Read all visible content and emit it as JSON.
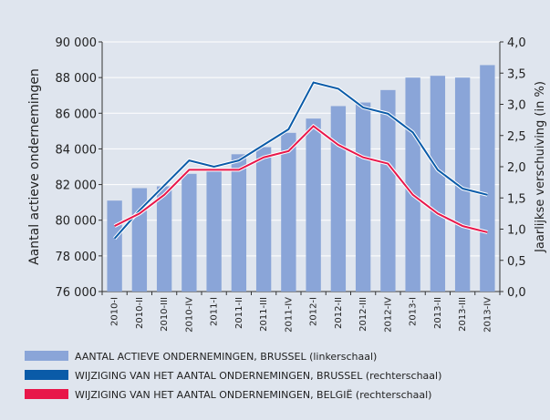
{
  "chart_data": {
    "type": "bar-line",
    "y_label": "Aantal actieve ondernemingen",
    "y2_label": "Jaarlijkse verschuiving (in %)",
    "categories": [
      "2010-I",
      "2010-II",
      "2010-III",
      "2010-IV",
      "2011-I",
      "2011-II",
      "2011-III",
      "2011-IV",
      "2012-I",
      "2012-II",
      "2012-III",
      "2012-IV",
      "2013-I",
      "2013-II",
      "2013-III",
      "2013-IV"
    ],
    "series": [
      {
        "name": "AANTAL ACTIEVE ONDERNEMINGEN, BRUSSEL (linkerschaal)",
        "color": "#8aa5d8",
        "kind": "bar",
        "values": [
          81100,
          81800,
          81900,
          82600,
          82900,
          83700,
          84100,
          84900,
          85700,
          86400,
          86600,
          87300,
          88000,
          88100,
          88000,
          88700
        ]
      },
      {
        "name": "WIJZIGING VAN HET AANTAL ONDERNEMINGEN, BRUSSEL (rechterschaal)",
        "color": "#0a5ba8",
        "kind": "line",
        "axis": "y2",
        "values": [
          0.85,
          1.3,
          1.7,
          2.1,
          2.0,
          2.1,
          2.35,
          2.6,
          3.35,
          3.25,
          2.95,
          2.85,
          2.55,
          1.95,
          1.65,
          1.55
        ]
      },
      {
        "name": "WIJZIGING VAN HET AANTAL ONDERNEMINGEN, BELGIË (rechterschaal)",
        "color": "#e8174a",
        "kind": "line",
        "axis": "y2",
        "values": [
          1.05,
          1.25,
          1.55,
          1.95,
          1.95,
          1.95,
          2.15,
          2.25,
          2.65,
          2.35,
          2.15,
          2.05,
          1.55,
          1.25,
          1.05,
          0.95
        ]
      }
    ],
    "ylim": [
      76000,
      90000
    ],
    "yticks": [
      {
        "value": 76000,
        "label": "76 000"
      },
      {
        "value": 78000,
        "label": "78 000"
      },
      {
        "value": 80000,
        "label": "80 000"
      },
      {
        "value": 82000,
        "label": "82 000"
      },
      {
        "value": 84000,
        "label": "84 000"
      },
      {
        "value": 86000,
        "label": "86 000"
      },
      {
        "value": 88000,
        "label": "88 000"
      },
      {
        "value": 90000,
        "label": "90 000"
      }
    ],
    "y2lim": [
      0,
      4
    ],
    "y2ticks": [
      {
        "value": 0,
        "label": "0,0"
      },
      {
        "value": 0.5,
        "label": "0,5"
      },
      {
        "value": 1,
        "label": "1,0"
      },
      {
        "value": 1.5,
        "label": "1,5"
      },
      {
        "value": 2,
        "label": "2,0"
      },
      {
        "value": 2.5,
        "label": "2,5"
      },
      {
        "value": 3,
        "label": "3,0"
      },
      {
        "value": 3.5,
        "label": "3,5"
      },
      {
        "value": 4,
        "label": "4,0"
      }
    ],
    "grid": true
  }
}
